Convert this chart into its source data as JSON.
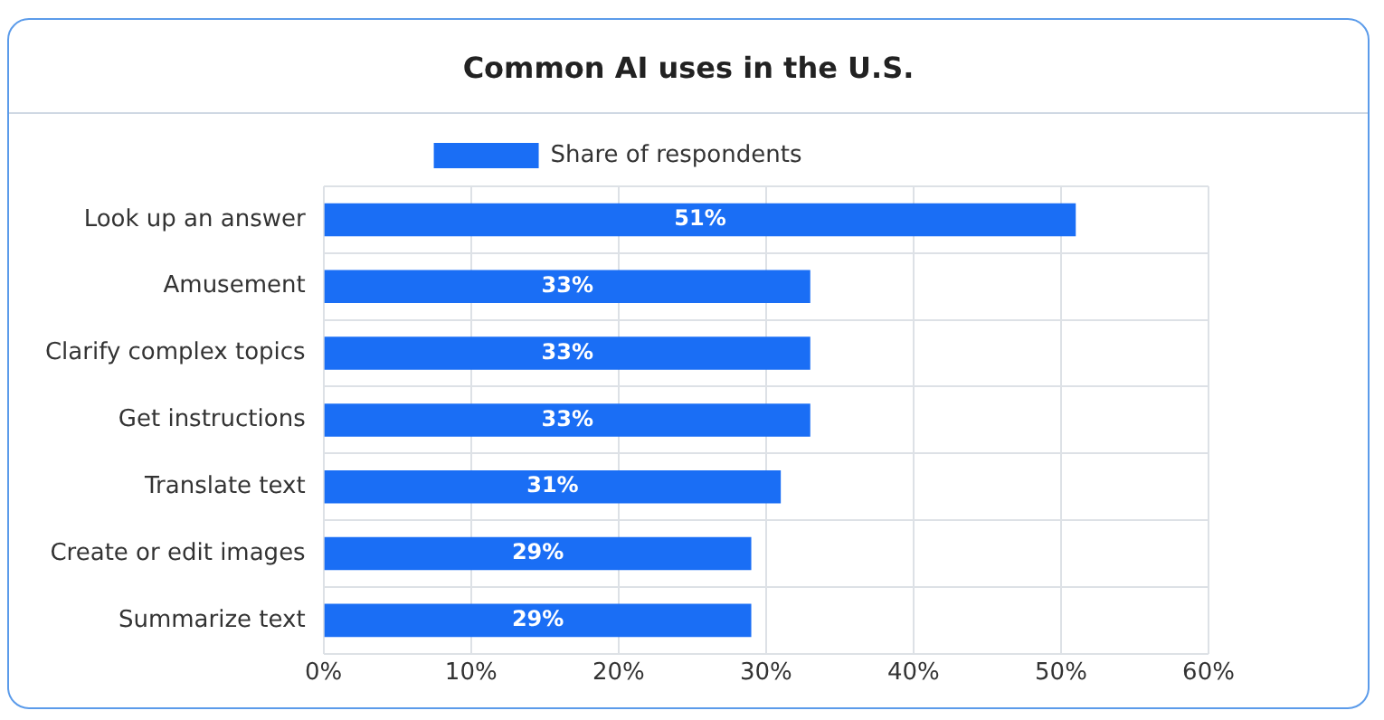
{
  "chart_data": {
    "type": "bar",
    "orientation": "horizontal",
    "title": "Common AI uses in the U.S.",
    "categories": [
      "Look up an answer",
      "Amusement",
      "Clarify complex topics",
      "Get instructions",
      "Translate text",
      "Create or edit images",
      "Summarize text"
    ],
    "series": [
      {
        "name": "Share of respondents",
        "color": "#1a6ef5",
        "values": [
          51,
          33,
          33,
          33,
          31,
          29,
          29
        ],
        "value_labels": [
          "51%",
          "33%",
          "33%",
          "33%",
          "31%",
          "29%",
          "29%"
        ]
      }
    ],
    "xlim": [
      0,
      60
    ],
    "xticks": [
      {
        "value": 0,
        "label": "0%"
      },
      {
        "value": 10,
        "label": "10%"
      },
      {
        "value": 20,
        "label": "20%"
      },
      {
        "value": 30,
        "label": "30%"
      },
      {
        "value": 40,
        "label": "40%"
      },
      {
        "value": 50,
        "label": "50%"
      },
      {
        "value": 60,
        "label": "60%"
      }
    ],
    "grid": true,
    "legend": "top"
  }
}
